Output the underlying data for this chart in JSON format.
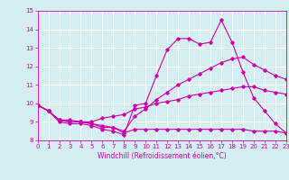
{
  "title": "",
  "xlabel": "Windchill (Refroidissement éolien,°C)",
  "ylabel": "",
  "bg_color": "#d4eef2",
  "line_color": "#cc00aa",
  "grid_color": "#ffffff",
  "xmin": 0,
  "xmax": 23,
  "ymin": 8,
  "ymax": 15,
  "line1_x": [
    0,
    1,
    2,
    3,
    4,
    5,
    6,
    7,
    8,
    9,
    10,
    11,
    12,
    13,
    14,
    15,
    16,
    17,
    18,
    19,
    20,
    21,
    22,
    23
  ],
  "line1_y": [
    9.9,
    9.6,
    9.0,
    8.9,
    8.9,
    8.8,
    8.6,
    8.5,
    8.3,
    9.9,
    10.0,
    11.5,
    12.9,
    13.5,
    13.5,
    13.2,
    13.3,
    14.5,
    13.3,
    11.7,
    10.3,
    9.6,
    8.9,
    8.4
  ],
  "line2_x": [
    0,
    1,
    2,
    3,
    4,
    5,
    6,
    7,
    8,
    9,
    10,
    11,
    12,
    13,
    14,
    15,
    16,
    17,
    18,
    19,
    20,
    21,
    22,
    23
  ],
  "line2_y": [
    9.9,
    9.6,
    9.1,
    9.0,
    9.0,
    8.9,
    8.7,
    8.7,
    8.4,
    8.6,
    8.6,
    8.6,
    8.6,
    8.6,
    8.6,
    8.6,
    8.6,
    8.6,
    8.6,
    8.6,
    8.5,
    8.5,
    8.5,
    8.4
  ],
  "line3_x": [
    0,
    1,
    2,
    3,
    4,
    5,
    6,
    7,
    8,
    9,
    10,
    11,
    12,
    13,
    14,
    15,
    16,
    17,
    18,
    19,
    20,
    21,
    22,
    23
  ],
  "line3_y": [
    9.9,
    9.6,
    9.1,
    9.1,
    9.0,
    9.0,
    9.2,
    9.3,
    9.4,
    9.7,
    9.8,
    10.0,
    10.1,
    10.2,
    10.4,
    10.5,
    10.6,
    10.7,
    10.8,
    10.9,
    10.9,
    10.7,
    10.6,
    10.5
  ],
  "line4_x": [
    0,
    1,
    2,
    3,
    4,
    5,
    6,
    7,
    8,
    9,
    10,
    11,
    12,
    13,
    14,
    15,
    16,
    17,
    18,
    19,
    20,
    21,
    22,
    23
  ],
  "line4_y": [
    9.9,
    9.6,
    9.1,
    9.0,
    9.0,
    8.9,
    8.8,
    8.7,
    8.5,
    9.3,
    9.7,
    10.2,
    10.6,
    11.0,
    11.3,
    11.6,
    11.9,
    12.2,
    12.4,
    12.5,
    12.1,
    11.8,
    11.5,
    11.3
  ],
  "tick_fontsize": 5.0,
  "xlabel_fontsize": 5.5
}
